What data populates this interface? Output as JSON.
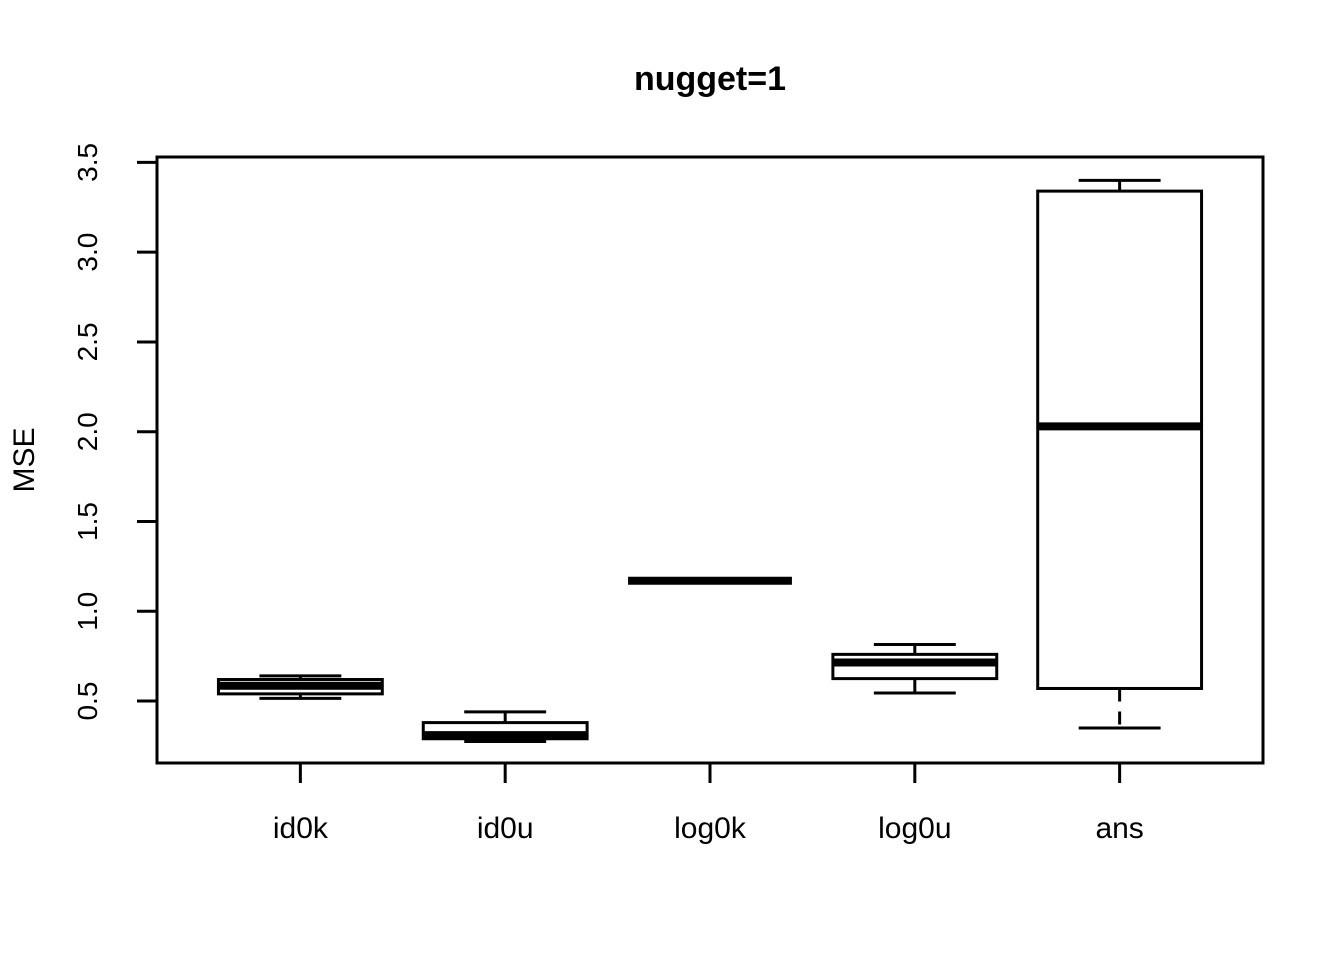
{
  "page": {
    "background": "#ffffff"
  },
  "chart_data": {
    "type": "boxplot",
    "title": "nugget=1",
    "xlabel": "",
    "ylabel": "MSE",
    "categories": [
      "id0k",
      "id0u",
      "log0k",
      "log0u",
      "ans"
    ],
    "y_ticks": [
      0.5,
      1.0,
      1.5,
      2.0,
      2.5,
      3.0,
      3.5
    ],
    "y_tick_labels": [
      "0.5",
      "1.0",
      "1.5",
      "2.0",
      "2.5",
      "3.0",
      "3.5"
    ],
    "ylim": [
      0.155,
      3.53
    ],
    "xlim": [
      0.3,
      5.7
    ],
    "grid": false,
    "frame": true,
    "legend": "none",
    "box_width": 0.8,
    "cap_width": 0.4,
    "colors": {
      "stroke": "#000000",
      "box_fill": "#ffffff",
      "background": "#ffffff"
    },
    "series": [
      {
        "name": "id0k",
        "whisker_low": 0.515,
        "q1": 0.54,
        "median": 0.585,
        "q3": 0.62,
        "whisker_high": 0.64
      },
      {
        "name": "id0u",
        "whisker_low": 0.275,
        "q1": 0.29,
        "median": 0.31,
        "q3": 0.38,
        "whisker_high": 0.44
      },
      {
        "name": "log0k",
        "whisker_low": 1.17,
        "q1": 1.17,
        "median": 1.17,
        "q3": 1.17,
        "whisker_high": 1.17
      },
      {
        "name": "log0u",
        "whisker_low": 0.545,
        "q1": 0.625,
        "median": 0.715,
        "q3": 0.76,
        "whisker_high": 0.815
      },
      {
        "name": "ans",
        "whisker_low": 0.35,
        "q1": 0.57,
        "median": 2.03,
        "q3": 3.34,
        "whisker_high": 3.4
      }
    ]
  }
}
